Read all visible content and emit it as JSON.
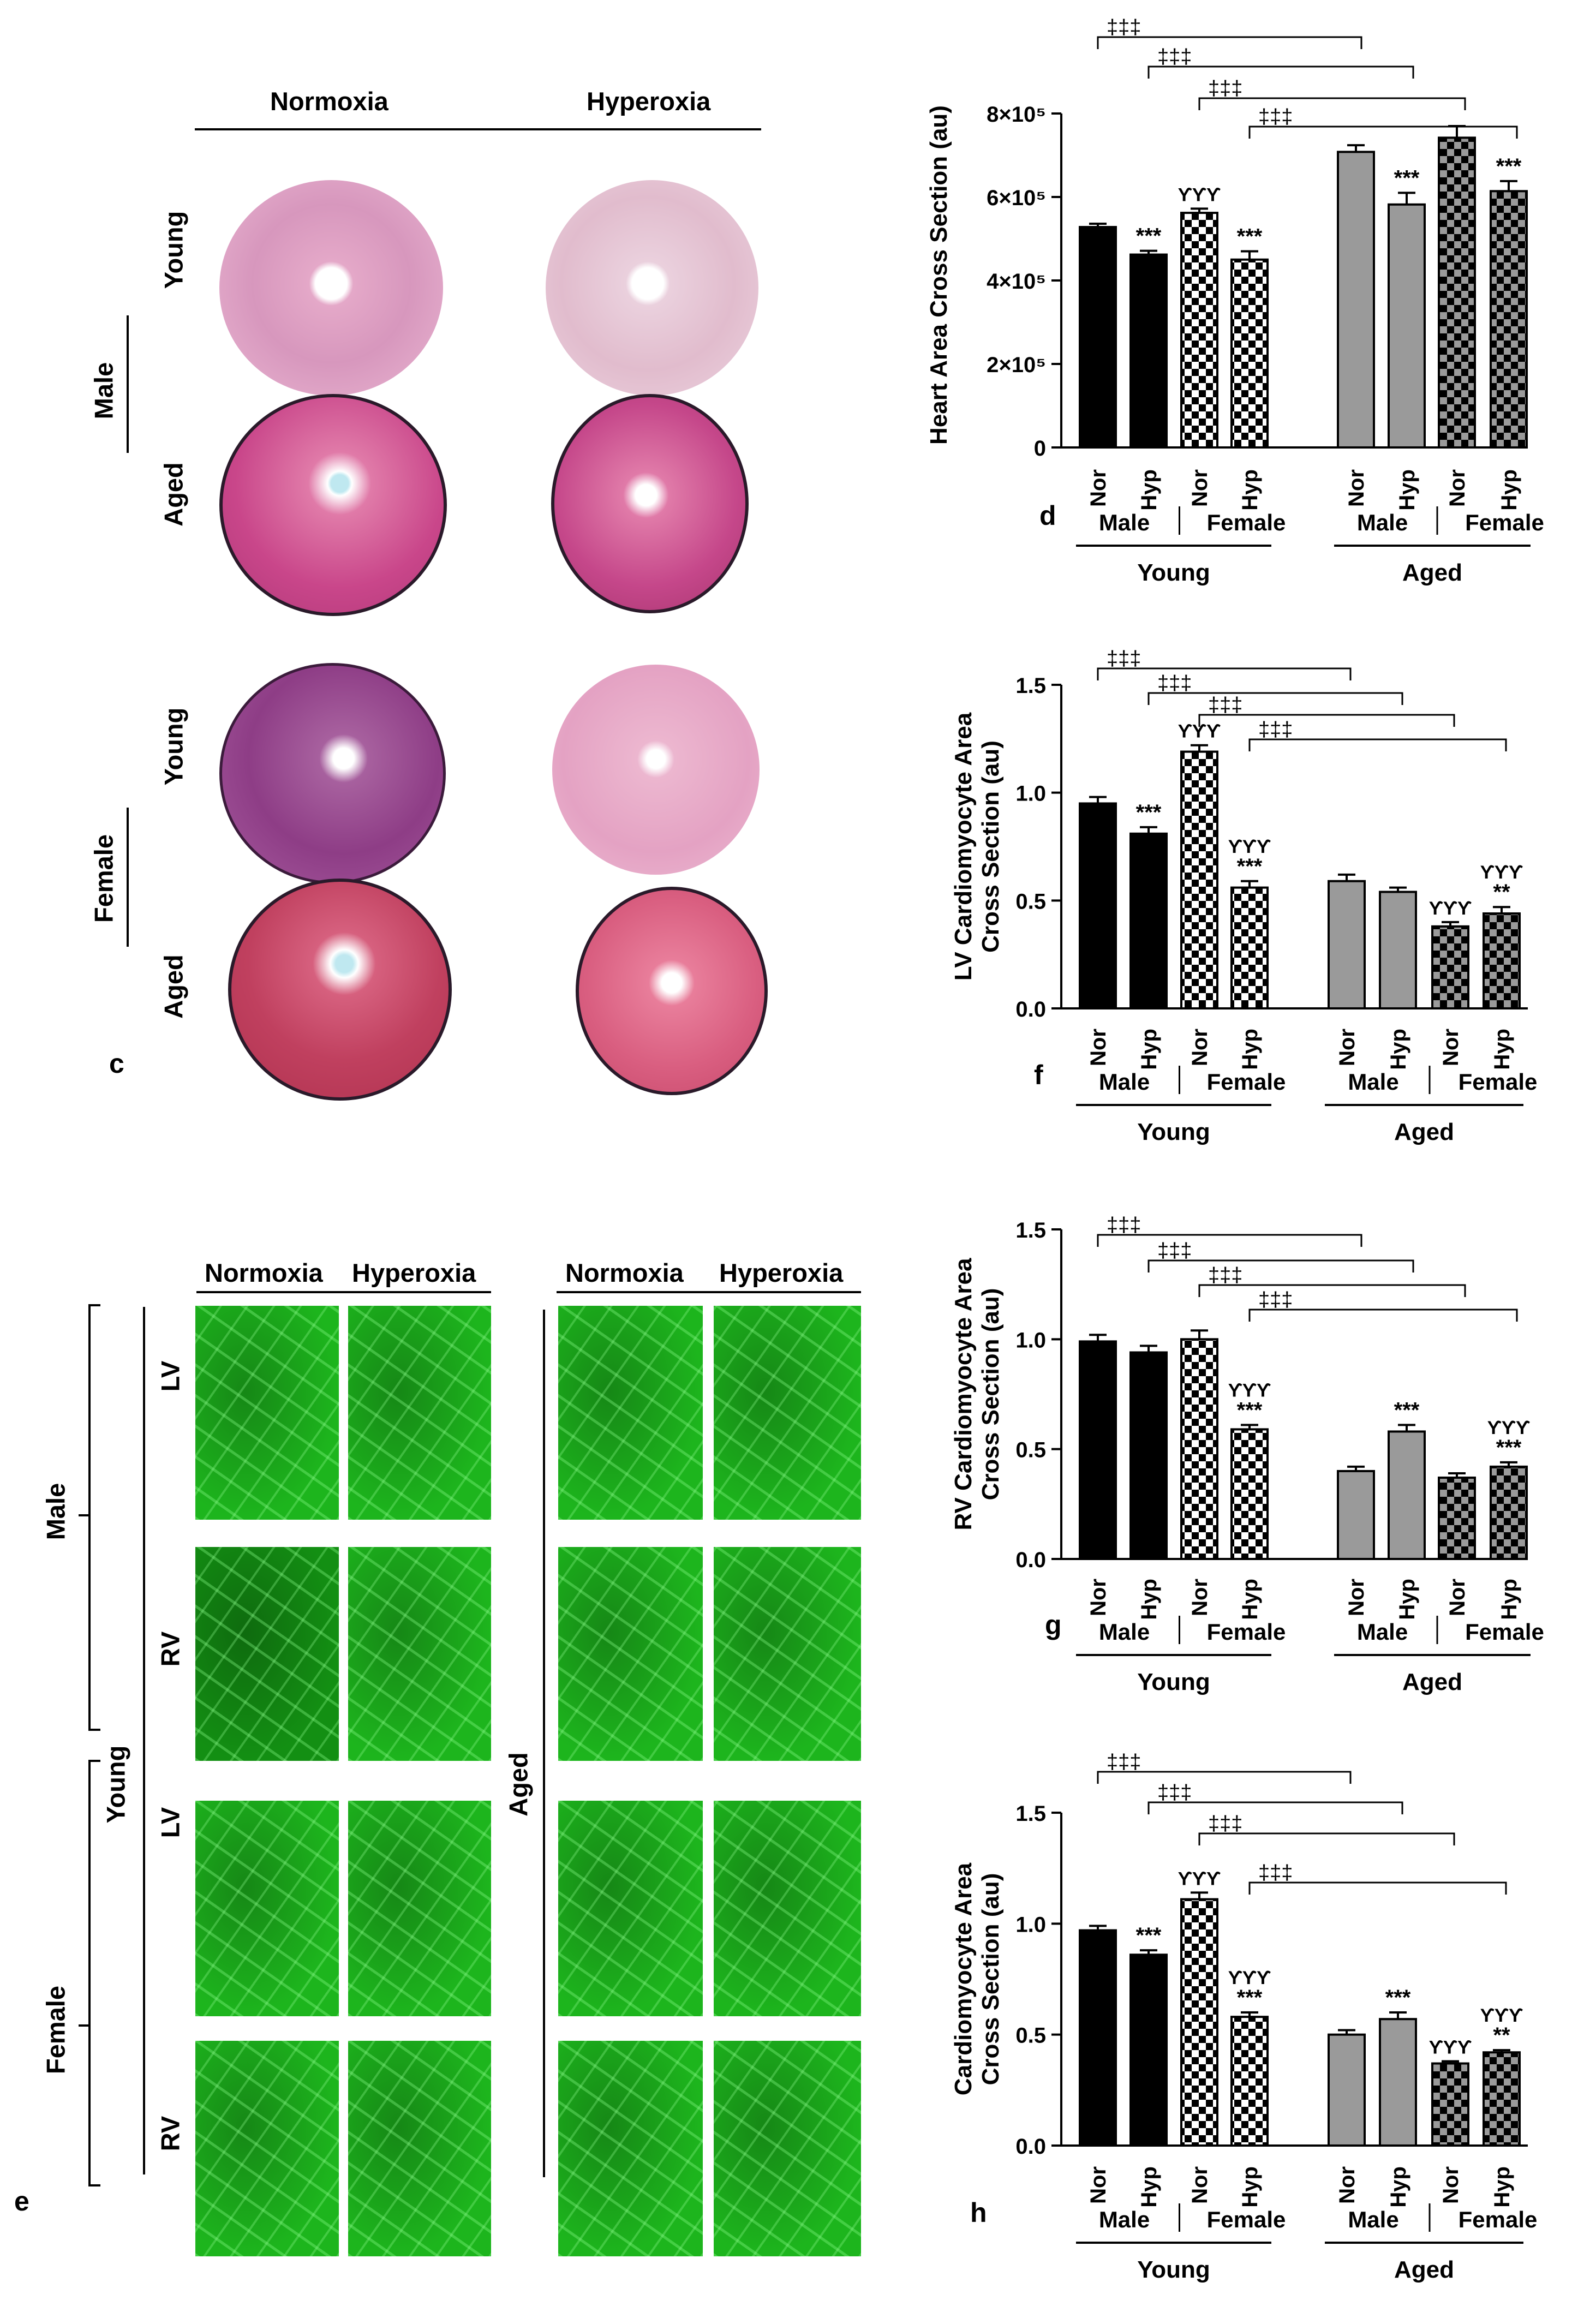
{
  "histology": {
    "col_headers": [
      "Normoxia",
      "Hyperoxia"
    ],
    "sex_labels": [
      "Male",
      "Female"
    ],
    "age_labels": [
      "Young",
      "Aged"
    ],
    "panel": "c"
  },
  "fluorescence": {
    "col_headers": [
      "Normoxia",
      "Hyperoxia"
    ],
    "sex_labels": [
      "Male",
      "Female"
    ],
    "ventricle_labels": [
      "LV",
      "RV"
    ],
    "age_labels": [
      "Young",
      "Aged"
    ],
    "panel": "e"
  },
  "chart_data": [
    {
      "type": "bar",
      "panel": "d",
      "ylabel": "Heart Area Cross Section (au)",
      "ylim": [
        0,
        800000
      ],
      "ytick_labels": [
        "0",
        "2×10⁵",
        "4×10⁵",
        "6×10⁵",
        "8×10⁵"
      ],
      "categories": [
        "Nor",
        "Hyp",
        "Nor",
        "Hyp",
        "Nor",
        "Hyp",
        "Nor",
        "Hyp"
      ],
      "values": [
        528000,
        462000,
        562000,
        450000,
        708000,
        582000,
        742000,
        614000
      ],
      "errors": [
        8000,
        9000,
        10000,
        20000,
        16000,
        28000,
        28000,
        24000
      ],
      "annotations": [
        "",
        "***",
        "ϒϒϒ",
        "***",
        "",
        "***",
        "",
        "***"
      ],
      "sex_labels": [
        "Male",
        "Female",
        "Male",
        "Female"
      ],
      "age_labels": [
        "Young",
        "Aged"
      ],
      "significance_label": "‡‡‡"
    },
    {
      "type": "bar",
      "panel": "f",
      "ylabel": "LV Cardiomyocyte Area Cross Section (au)",
      "ylim": [
        0,
        1.5
      ],
      "ytick_labels": [
        "0.0",
        "0.5",
        "1.0",
        "1.5"
      ],
      "categories": [
        "Nor",
        "Hyp",
        "Nor",
        "Hyp",
        "Nor",
        "Hyp",
        "Nor",
        "Hyp"
      ],
      "values": [
        0.95,
        0.81,
        1.19,
        0.56,
        0.59,
        0.54,
        0.38,
        0.44
      ],
      "errors": [
        0.03,
        0.03,
        0.03,
        0.03,
        0.03,
        0.02,
        0.02,
        0.03
      ],
      "annotations": [
        "",
        "***",
        "ϒϒϒ",
        "ϒϒϒ\n***",
        "",
        "",
        "ϒϒϒ",
        "ϒϒϒ\n**"
      ],
      "sex_labels": [
        "Male",
        "Female",
        "Male",
        "Female"
      ],
      "age_labels": [
        "Young",
        "Aged"
      ],
      "significance_label": "‡‡‡"
    },
    {
      "type": "bar",
      "panel": "g",
      "ylabel": "RV Cardiomyocyte Area Cross Section (au)",
      "ylim": [
        0,
        1.5
      ],
      "ytick_labels": [
        "0.0",
        "0.5",
        "1.0",
        "1.5"
      ],
      "categories": [
        "Nor",
        "Hyp",
        "Nor",
        "Hyp",
        "Nor",
        "Hyp",
        "Nor",
        "Hyp"
      ],
      "values": [
        0.99,
        0.94,
        1.0,
        0.59,
        0.4,
        0.58,
        0.37,
        0.42
      ],
      "errors": [
        0.03,
        0.03,
        0.04,
        0.02,
        0.02,
        0.03,
        0.02,
        0.02
      ],
      "annotations": [
        "",
        "",
        "",
        "ϒϒϒ\n***",
        "",
        "***",
        "",
        "ϒϒϒ\n***"
      ],
      "sex_labels": [
        "Male",
        "Female",
        "Male",
        "Female"
      ],
      "age_labels": [
        "Young",
        "Aged"
      ],
      "significance_label": "‡‡‡"
    },
    {
      "type": "bar",
      "panel": "h",
      "ylabel": "Cardiomyocyte Area Cross Section (au)",
      "ylim": [
        0,
        1.5
      ],
      "ytick_labels": [
        "0.0",
        "0.5",
        "1.0",
        "1.5"
      ],
      "categories": [
        "Nor",
        "Hyp",
        "Nor",
        "Hyp",
        "Nor",
        "Hyp",
        "Nor",
        "Hyp"
      ],
      "values": [
        0.97,
        0.86,
        1.11,
        0.58,
        0.5,
        0.57,
        0.37,
        0.42
      ],
      "errors": [
        0.02,
        0.02,
        0.03,
        0.02,
        0.02,
        0.03,
        0.01,
        0.01
      ],
      "annotations": [
        "",
        "***",
        "ϒϒϒ",
        "ϒϒϒ\n***",
        "",
        "***",
        "ϒϒϒ",
        "ϒϒϒ\n**"
      ],
      "sex_labels": [
        "Male",
        "Female",
        "Male",
        "Female"
      ],
      "age_labels": [
        "Young",
        "Aged"
      ],
      "significance_label": "‡‡‡"
    }
  ]
}
